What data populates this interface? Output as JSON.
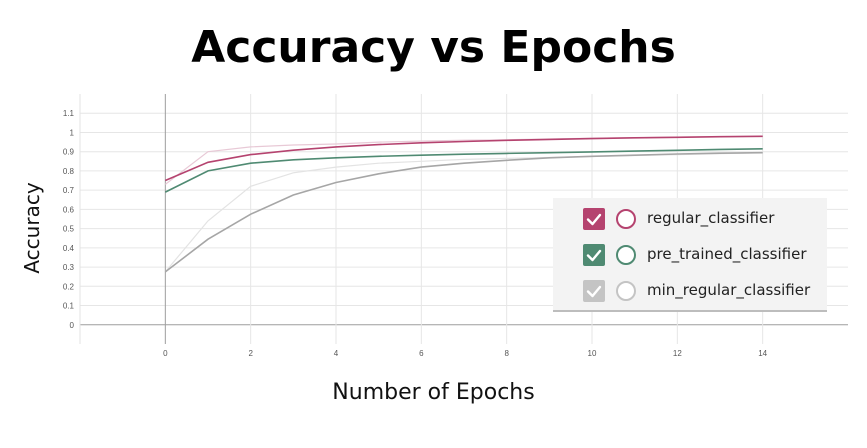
{
  "chart_data": {
    "type": "line",
    "title": "Accuracy vs Epochs",
    "xlabel": "Number of Epochs",
    "ylabel": "Accuracy",
    "xlim": [
      -2,
      16
    ],
    "ylim": [
      -0.1,
      1.2
    ],
    "x_ticks": [
      0,
      2,
      4,
      6,
      8,
      10,
      12,
      14
    ],
    "y_ticks": [
      0,
      0.1,
      0.2,
      0.3,
      0.4,
      0.5,
      0.6,
      0.7,
      0.8,
      0.9,
      1,
      1.1
    ],
    "grid": true,
    "legend_position": "right",
    "x": [
      0,
      1,
      2,
      3,
      4,
      5,
      6,
      7,
      8,
      9,
      10,
      11,
      12,
      13,
      14
    ],
    "series": [
      {
        "name": "regular_classifier",
        "color": "#b5436f",
        "values": [
          0.75,
          0.845,
          0.885,
          0.908,
          0.925,
          0.937,
          0.946,
          0.953,
          0.959,
          0.964,
          0.968,
          0.972,
          0.975,
          0.978,
          0.98
        ]
      },
      {
        "name": "pre_trained_classifier",
        "color": "#4f8a72",
        "values": [
          0.69,
          0.8,
          0.84,
          0.858,
          0.868,
          0.876,
          0.882,
          0.887,
          0.891,
          0.895,
          0.899,
          0.903,
          0.907,
          0.912,
          0.915
        ]
      },
      {
        "name": "min_regular_classifier",
        "color": "#a6a6a6",
        "values": [
          0.275,
          0.445,
          0.575,
          0.675,
          0.74,
          0.785,
          0.82,
          0.84,
          0.855,
          0.868,
          0.876,
          0.882,
          0.888,
          0.892,
          0.895
        ]
      }
    ],
    "faint_series": [
      {
        "color": "#e8c9d6",
        "values": [
          0.73,
          0.9,
          0.925,
          0.935,
          0.94,
          0.95,
          0.955,
          0.96,
          0.962,
          0.966,
          0.97,
          0.973,
          0.976,
          0.978,
          0.98
        ]
      },
      {
        "color": "#e3e3e3",
        "values": [
          0.275,
          0.54,
          0.72,
          0.79,
          0.82,
          0.84,
          0.85,
          0.86,
          0.865,
          0.87,
          0.875,
          0.88,
          0.885,
          0.89,
          0.895
        ]
      }
    ]
  }
}
